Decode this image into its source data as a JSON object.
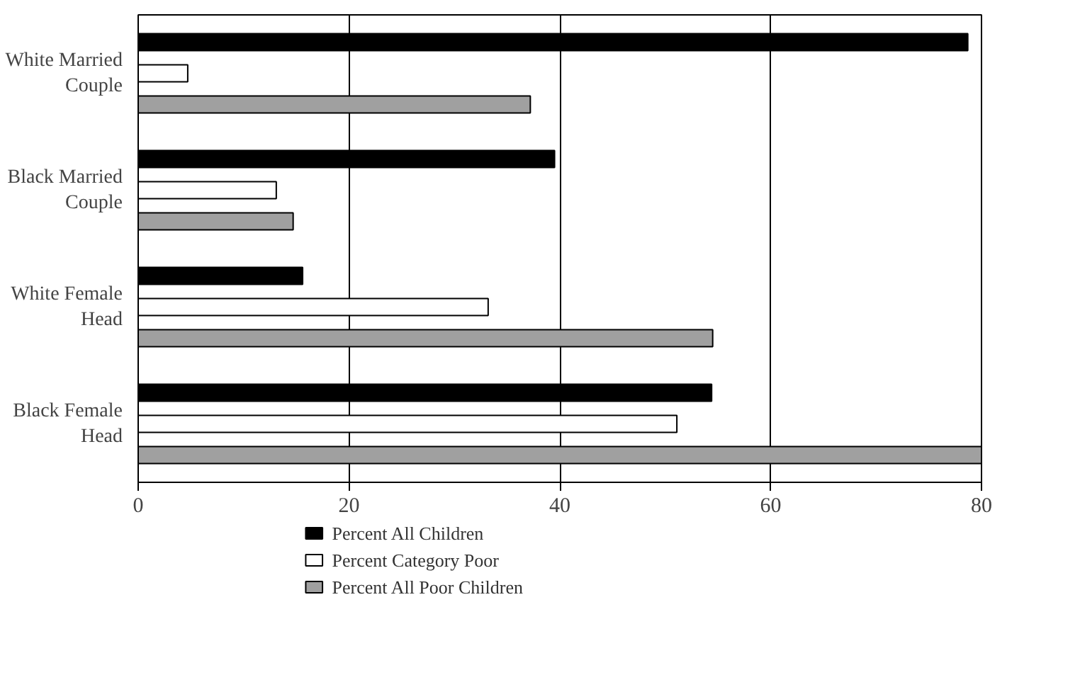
{
  "chart_data": {
    "type": "bar",
    "orientation": "horizontal",
    "categories": [
      "White Married Couple",
      "Black Married Couple",
      "White Female Head",
      "Black Female Head"
    ],
    "series": [
      {
        "name": "Percent All Children",
        "color": "#000000",
        "values": [
          78.7,
          39.5,
          15.6,
          54.4
        ]
      },
      {
        "name": "Percent Category Poor",
        "color": "#ffffff",
        "values": [
          4.7,
          13.1,
          33.2,
          51.1
        ]
      },
      {
        "name": "Percent All Poor Children",
        "color": "#a0a0a0",
        "values": [
          37.2,
          14.7,
          54.5,
          80
        ]
      }
    ],
    "xlim": [
      0,
      80
    ],
    "xticks": [
      0,
      20,
      40,
      60,
      80
    ],
    "grid": "x",
    "legend": "bottom"
  }
}
